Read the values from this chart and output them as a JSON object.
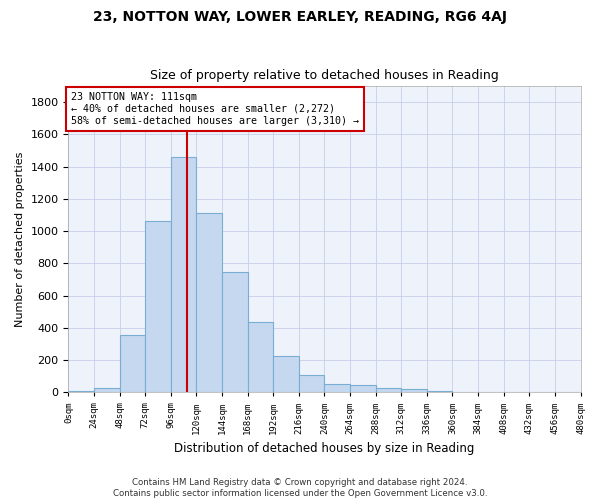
{
  "title": "23, NOTTON WAY, LOWER EARLEY, READING, RG6 4AJ",
  "subtitle": "Size of property relative to detached houses in Reading",
  "xlabel": "Distribution of detached houses by size in Reading",
  "ylabel": "Number of detached properties",
  "footnote1": "Contains HM Land Registry data © Crown copyright and database right 2024.",
  "footnote2": "Contains public sector information licensed under the Open Government Licence v3.0.",
  "bar_edges": [
    0,
    24,
    48,
    72,
    96,
    120,
    144,
    168,
    192,
    216,
    240,
    264,
    288,
    312,
    336,
    360,
    384,
    408,
    432,
    456,
    480
  ],
  "bar_heights": [
    10,
    30,
    355,
    1060,
    1460,
    1110,
    745,
    435,
    225,
    110,
    50,
    45,
    30,
    20,
    8,
    5,
    3,
    2,
    1,
    1
  ],
  "bar_color": "#c5d8f0",
  "bar_edge_color": "#7aadd4",
  "vline_x": 111,
  "vline_color": "#cc0000",
  "annotation_text": "23 NOTTON WAY: 111sqm\n← 40% of detached houses are smaller (2,272)\n58% of semi-detached houses are larger (3,310) →",
  "annotation_box_color": "#cc0000",
  "ylim": [
    0,
    1900
  ],
  "yticks": [
    0,
    200,
    400,
    600,
    800,
    1000,
    1200,
    1400,
    1600,
    1800
  ],
  "bg_color": "#ffffff",
  "plot_bg_color": "#eef2fb",
  "grid_color": "#c8cfe8"
}
